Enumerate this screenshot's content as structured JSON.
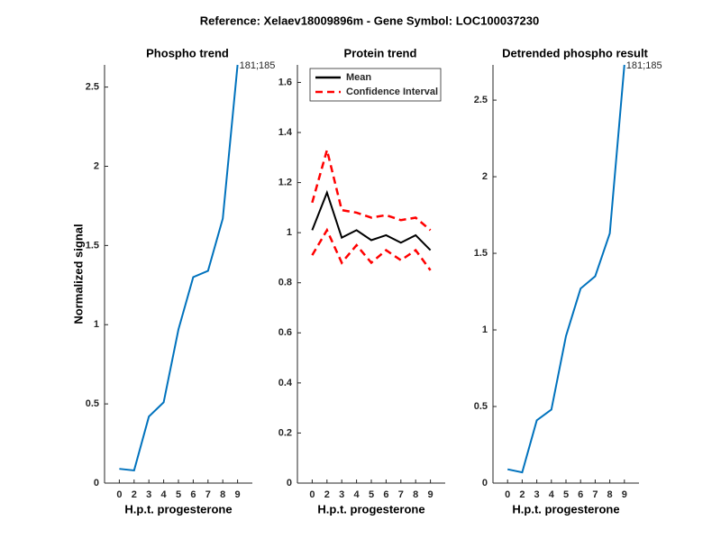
{
  "title": "Reference:  Xelaev18009896m - Gene Symbol:  LOC100037230",
  "chart_data": [
    {
      "type": "line",
      "title": "Phospho trend",
      "ylabel": "Normalized signal",
      "xlabel": "H.p.t. progesterone",
      "categories": [
        "0",
        "2",
        "3",
        "4",
        "5",
        "6",
        "7",
        "8",
        "9"
      ],
      "series": [
        {
          "name": "181;185",
          "color": "#0072bd",
          "linestyle": "solid",
          "values": [
            0.09,
            0.08,
            0.42,
            0.51,
            0.97,
            1.3,
            1.34,
            1.67,
            2.64
          ]
        }
      ],
      "annotation": "181;185",
      "ylim": [
        0,
        2.64
      ],
      "yticks": [
        0,
        0.5,
        1,
        1.5,
        2,
        2.5
      ]
    },
    {
      "type": "line",
      "title": "Protein trend",
      "xlabel": "H.p.t. progesterone",
      "categories": [
        "0",
        "2",
        "3",
        "4",
        "5",
        "6",
        "7",
        "8",
        "9"
      ],
      "series": [
        {
          "name": "Mean",
          "color": "#000000",
          "linestyle": "solid",
          "values": [
            1.01,
            1.16,
            0.98,
            1.01,
            0.97,
            0.99,
            0.96,
            0.99,
            0.93
          ]
        },
        {
          "name": "Confidence Interval",
          "color": "#ff0000",
          "linestyle": "dashed",
          "upper": [
            1.12,
            1.33,
            1.09,
            1.08,
            1.06,
            1.07,
            1.05,
            1.06,
            1.01
          ],
          "lower": [
            0.91,
            1.01,
            0.88,
            0.95,
            0.88,
            0.93,
            0.89,
            0.93,
            0.85
          ]
        }
      ],
      "legend": "upper-left",
      "ylim": [
        0,
        1.67
      ],
      "yticks": [
        0,
        0.2,
        0.4,
        0.6,
        0.8,
        1,
        1.2,
        1.4,
        1.6
      ]
    },
    {
      "type": "line",
      "title": "Detrended phospho result",
      "xlabel": "H.p.t. progesterone",
      "categories": [
        "0",
        "2",
        "3",
        "4",
        "5",
        "6",
        "7",
        "8",
        "9"
      ],
      "series": [
        {
          "name": "181;185",
          "color": "#0072bd",
          "linestyle": "solid",
          "values": [
            0.09,
            0.07,
            0.41,
            0.48,
            0.96,
            1.27,
            1.35,
            1.63,
            2.73
          ]
        }
      ],
      "annotation": "181;185",
      "ylim": [
        0,
        2.73
      ],
      "yticks": [
        0,
        0.5,
        1,
        1.5,
        2,
        2.5
      ]
    }
  ]
}
